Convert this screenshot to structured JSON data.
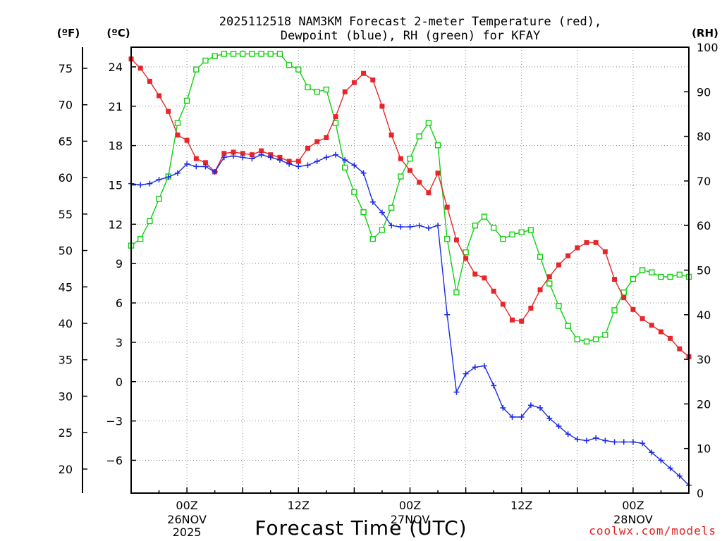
{
  "chart_data": {
    "type": "line",
    "title_line1": "2025112518 NAM3KM Forecast 2-meter Temperature (red),",
    "title_line2": "Dewpoint (blue), RH (green) for KFAY",
    "xlabel": "Forecast Time (UTC)",
    "credit": "coolwx.com/models",
    "units": {
      "fahrenheit": "(ºF)",
      "celsius": "(ºC)",
      "rh": "(RH)"
    },
    "celsius_axis": {
      "ylim": [
        -8.5,
        25.5
      ],
      "ticks": [
        "24",
        "21",
        "18",
        "15",
        "12",
        "9",
        "6",
        "3",
        "0",
        "−3",
        "−6"
      ],
      "tick_values": [
        24,
        21,
        18,
        15,
        12,
        9,
        6,
        3,
        0,
        -3,
        -6
      ]
    },
    "fahrenheit_axis": {
      "ticks": [
        "75",
        "70",
        "65",
        "60",
        "55",
        "50",
        "45",
        "40",
        "35",
        "30",
        "25",
        "20"
      ],
      "tick_values": [
        75,
        70,
        65,
        60,
        55,
        50,
        45,
        40,
        35,
        30,
        25,
        20
      ]
    },
    "rh_axis": {
      "ylim": [
        0,
        100
      ],
      "ticks": [
        "100",
        "90",
        "80",
        "70",
        "60",
        "50",
        "40",
        "30",
        "20",
        "10",
        "0"
      ],
      "tick_values": [
        100,
        90,
        80,
        70,
        60,
        50,
        40,
        30,
        20,
        10,
        0
      ]
    },
    "x_axis": {
      "unit": "forecast hour from 2025-11-25 18Z",
      "xlim": [
        0,
        60
      ],
      "ticks": [
        {
          "hour": 6,
          "line1": "00Z",
          "line2": "26NOV",
          "line3": "2025"
        },
        {
          "hour": 18,
          "line1": "12Z",
          "line2": "",
          "line3": ""
        },
        {
          "hour": 30,
          "line1": "00Z",
          "line2": "27NOV",
          "line3": ""
        },
        {
          "hour": 42,
          "line1": "12Z",
          "line2": "",
          "line3": ""
        },
        {
          "hour": 54,
          "line1": "00Z",
          "line2": "28NOV",
          "line3": ""
        }
      ]
    },
    "grid": "dotted",
    "colors": {
      "temperature": "#e8262a",
      "dewpoint": "#1a2ae8",
      "rh": "#10d010"
    },
    "series": [
      {
        "name": "2-meter Temperature (°C)",
        "marker": "filled-square",
        "x": [
          0,
          1,
          2,
          3,
          4,
          5,
          6,
          7,
          8,
          9,
          10,
          11,
          12,
          13,
          14,
          15,
          16,
          17,
          18,
          19,
          20,
          21,
          22,
          23,
          24,
          25,
          26,
          27,
          28,
          29,
          30,
          31,
          32,
          33,
          34,
          35,
          36,
          37,
          38,
          39,
          40,
          41,
          42,
          43,
          44,
          45,
          46,
          47,
          48,
          49,
          50,
          51,
          52,
          53,
          54,
          55,
          56,
          57,
          58,
          59,
          60
        ],
        "values": [
          24.6,
          23.9,
          22.9,
          21.8,
          20.6,
          18.8,
          18.4,
          17.0,
          16.7,
          16.0,
          17.4,
          17.5,
          17.4,
          17.3,
          17.6,
          17.3,
          17.1,
          16.8,
          16.8,
          17.8,
          18.3,
          18.6,
          20.2,
          22.1,
          22.8,
          23.5,
          23.0,
          21.0,
          18.8,
          17.0,
          16.1,
          15.2,
          14.4,
          15.9,
          13.3,
          10.8,
          9.4,
          8.2,
          7.9,
          6.9,
          5.9,
          4.7,
          4.6,
          5.6,
          7.0,
          8.0,
          8.9,
          9.6,
          10.2,
          10.6,
          10.6,
          9.9,
          7.8,
          6.4,
          5.5,
          4.8,
          4.3,
          3.8,
          3.3,
          2.5,
          1.9
        ]
      },
      {
        "name": "Dewpoint (°C)",
        "marker": "plus",
        "x": [
          0,
          1,
          2,
          3,
          4,
          5,
          6,
          7,
          8,
          9,
          10,
          11,
          12,
          13,
          14,
          15,
          16,
          17,
          18,
          19,
          20,
          21,
          22,
          23,
          24,
          25,
          26,
          27,
          28,
          29,
          30,
          31,
          32,
          33,
          34,
          35,
          36,
          37,
          38,
          39,
          40,
          41,
          42,
          43,
          44,
          45,
          46,
          47,
          48,
          49,
          50,
          51,
          52,
          53,
          54,
          55,
          56,
          57,
          58,
          59,
          60
        ],
        "values": [
          15.1,
          15.0,
          15.1,
          15.4,
          15.6,
          15.9,
          16.6,
          16.4,
          16.4,
          16.0,
          17.1,
          17.2,
          17.1,
          17.0,
          17.3,
          17.1,
          16.9,
          16.6,
          16.4,
          16.5,
          16.8,
          17.1,
          17.3,
          16.9,
          16.5,
          15.9,
          13.7,
          12.9,
          11.9,
          11.8,
          11.8,
          11.9,
          11.7,
          11.9,
          5.1,
          -0.8,
          0.6,
          1.1,
          1.2,
          -0.3,
          -2.0,
          -2.7,
          -2.7,
          -1.8,
          -2.0,
          -2.8,
          -3.4,
          -4.0,
          -4.4,
          -4.5,
          -4.3,
          -4.5,
          -4.6,
          -4.6,
          -4.6,
          -4.7,
          -5.4,
          -6.0,
          -6.6,
          -7.2,
          -7.9
        ]
      },
      {
        "name": "Relative Humidity (%)",
        "marker": "open-square",
        "x": [
          0,
          1,
          2,
          3,
          4,
          5,
          6,
          7,
          8,
          9,
          10,
          11,
          12,
          13,
          14,
          15,
          16,
          17,
          18,
          19,
          20,
          21,
          22,
          23,
          24,
          25,
          26,
          27,
          28,
          29,
          30,
          31,
          32,
          33,
          34,
          35,
          36,
          37,
          38,
          39,
          40,
          41,
          42,
          43,
          44,
          45,
          46,
          47,
          48,
          49,
          50,
          51,
          52,
          53,
          54,
          55,
          56,
          57,
          58,
          59,
          60
        ],
        "values": [
          55.5,
          57,
          61,
          66,
          71,
          83,
          88,
          95,
          97,
          98,
          98.5,
          98.5,
          98.5,
          98.5,
          98.5,
          98.5,
          98.5,
          96,
          95,
          91,
          90,
          90.5,
          83,
          73,
          67.5,
          63,
          57,
          59,
          64,
          71,
          75,
          80,
          83,
          78,
          57,
          45,
          54,
          60,
          62,
          59.5,
          57,
          58,
          58.5,
          59,
          53,
          47,
          42,
          37.5,
          34.5,
          34,
          34.5,
          35.5,
          41,
          45,
          48,
          50,
          49.5,
          48.5,
          48.5,
          49,
          48.5
        ]
      }
    ]
  }
}
